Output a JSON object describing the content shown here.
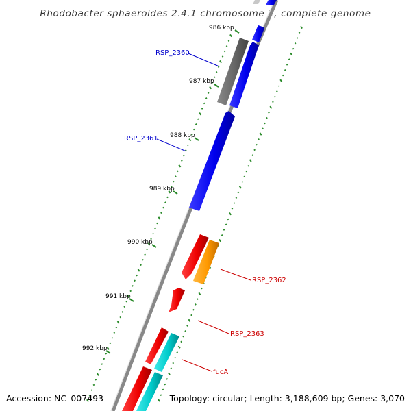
{
  "title": "Rhodobacter sphaeroides 2.4.1 chromosome 1, complete genome",
  "footer": {
    "accession": "Accession: NC_007493",
    "topology": "Topology: circular; Length: 3,188,609 bp; Genes: 3,070"
  },
  "scale_labels": [
    "986 kbp",
    "987 kbp",
    "988 kbp",
    "989 kbp",
    "990 kbp",
    "991 kbp",
    "992 kbp"
  ],
  "gene_labels": [
    {
      "text": "RSP_2360",
      "color": "#0000cc"
    },
    {
      "text": "RSP_2361",
      "color": "#0000cc"
    },
    {
      "text": "RSP_2362",
      "color": "#cc0000"
    },
    {
      "text": "RSP_2363",
      "color": "#cc0000"
    },
    {
      "text": "fucA",
      "color": "#cc0000"
    }
  ],
  "colors": {
    "backbone": "#888888",
    "forward_gene": "#0000ee",
    "pseudo_gene": "#666666",
    "reverse_gene": "#ee0000",
    "orange_gene": "#ff9900",
    "cyan_gene": "#00cccc",
    "tick": "#2a8a2a"
  }
}
